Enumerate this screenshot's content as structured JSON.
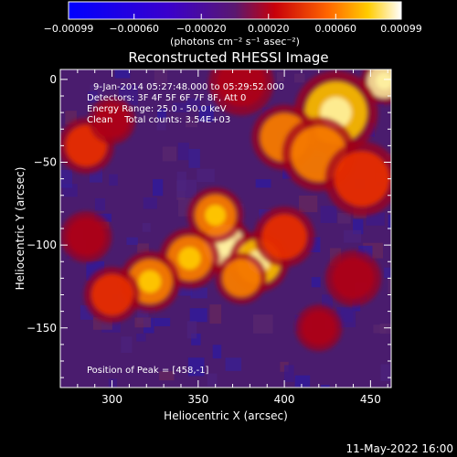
{
  "chart_data": {
    "type": "heatmap",
    "title": "Reconstructed RHESSI Image",
    "xlabel": "Heliocentric X (arcsec)",
    "ylabel": "Heliocentric Y (arcsec)",
    "xlim": [
      270,
      462
    ],
    "ylim": [
      -186,
      6
    ],
    "x_ticks": [
      300,
      350,
      400,
      450
    ],
    "y_ticks": [
      0,
      -50,
      -100,
      -150
    ],
    "x_tick_labels": [
      "300",
      "350",
      "400",
      "450"
    ],
    "y_tick_labels": [
      "0",
      "−50",
      "−100",
      "−150"
    ],
    "colorbar": {
      "range": [
        -0.00099,
        0.00099
      ],
      "ticks": [
        -0.00099,
        -0.0006,
        -0.0002,
        0.0002,
        0.0006,
        0.00099
      ],
      "tick_labels": [
        "−0.00099",
        "−0.00060",
        "−0.00020",
        "0.00020",
        "0.00060",
        "0.00099"
      ],
      "unit_label": "(photons cm⁻² s⁻¹ asec⁻²)",
      "colormap": "blue-purple-red-yellow-white"
    },
    "annotations": [
      "9-Jan-2014 05:27:48.000 to 05:29:52.000",
      "Detectors: 3F 4F 5F 6F 7F 8F, Att 0",
      "Energy Range: 25.0 - 50.0 keV",
      "Clean    Total counts: 3.54E+03"
    ],
    "peak_label": "Position of Peak = [458,-1]",
    "peak": [
      458,
      -1
    ],
    "blobs": [
      {
        "x": 458,
        "y": -1,
        "s": 10,
        "a": 1.0
      },
      {
        "x": 430,
        "y": -20,
        "s": 18,
        "a": 0.85
      },
      {
        "x": 375,
        "y": -2,
        "s": 14,
        "a": 0.55
      },
      {
        "x": 400,
        "y": -35,
        "s": 14,
        "a": 0.75
      },
      {
        "x": 420,
        "y": -45,
        "s": 16,
        "a": 0.7
      },
      {
        "x": 445,
        "y": -60,
        "s": 16,
        "a": 0.6
      },
      {
        "x": 365,
        "y": -100,
        "s": 12,
        "a": 0.95
      },
      {
        "x": 360,
        "y": -82,
        "s": 12,
        "a": 0.8
      },
      {
        "x": 345,
        "y": -108,
        "s": 13,
        "a": 0.8
      },
      {
        "x": 385,
        "y": -110,
        "s": 13,
        "a": 0.85
      },
      {
        "x": 375,
        "y": -120,
        "s": 11,
        "a": 0.7
      },
      {
        "x": 322,
        "y": -122,
        "s": 13,
        "a": 0.8
      },
      {
        "x": 300,
        "y": -130,
        "s": 12,
        "a": 0.65
      },
      {
        "x": 285,
        "y": -40,
        "s": 12,
        "a": 0.6
      },
      {
        "x": 300,
        "y": -25,
        "s": 10,
        "a": 0.5
      },
      {
        "x": 285,
        "y": -95,
        "s": 11,
        "a": 0.55
      },
      {
        "x": 400,
        "y": -95,
        "s": 13,
        "a": 0.6
      },
      {
        "x": 440,
        "y": -120,
        "s": 12,
        "a": 0.5
      },
      {
        "x": 420,
        "y": -150,
        "s": 10,
        "a": 0.4
      }
    ]
  }
}
